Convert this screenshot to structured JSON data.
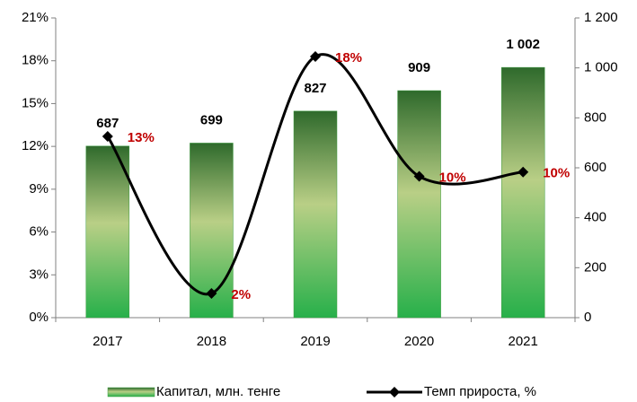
{
  "chart_data": {
    "type": "bar-line",
    "categories": [
      "2017",
      "2018",
      "2019",
      "2020",
      "2021"
    ],
    "series": [
      {
        "name": "Капитал, млн. тенге",
        "type": "bar",
        "axis": "y2",
        "color": "#3a9a3e",
        "values": [
          687,
          699,
          827,
          909,
          1002
        ],
        "value_labels": [
          "687",
          "699",
          "827",
          "909",
          "1 002"
        ]
      },
      {
        "name": "Темп прироста, %",
        "type": "line",
        "axis": "y",
        "color": "#000000",
        "values": [
          12.7,
          1.7,
          18.3,
          9.9,
          10.2
        ],
        "value_labels": [
          "13%",
          "2%",
          "18%",
          "10%",
          "10%"
        ],
        "label_color": "#c00000"
      }
    ],
    "ylim": [
      0,
      21
    ],
    "yticks": [
      {
        "value": 0,
        "label": "0%"
      },
      {
        "value": 3,
        "label": "3%"
      },
      {
        "value": 6,
        "label": "6%"
      },
      {
        "value": 9,
        "label": "9%"
      },
      {
        "value": 12,
        "label": "12%"
      },
      {
        "value": 15,
        "label": "15%"
      },
      {
        "value": 18,
        "label": "18%"
      },
      {
        "value": 21,
        "label": "21%"
      }
    ],
    "y2lim": [
      0,
      1200
    ],
    "y2ticks": [
      0,
      200,
      400,
      600,
      800,
      {
        "value": 1000,
        "label": "1 000"
      },
      {
        "value": 1200,
        "label": "1 200"
      }
    ],
    "legend": "bottom"
  }
}
